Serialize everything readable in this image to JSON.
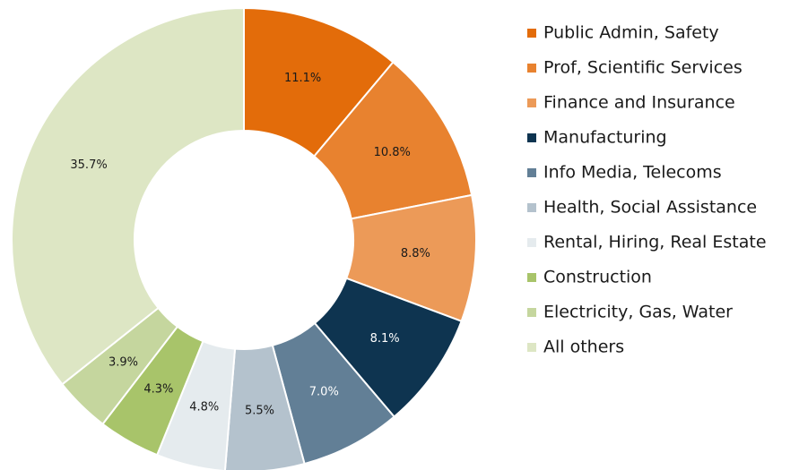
{
  "chart_data": {
    "type": "donut",
    "categories": [
      "Public Admin, Safety",
      "Prof, Scientific Services",
      "Finance and Insurance",
      "Manufacturing",
      "Info Media, Telecoms",
      "Health, Social Assistance",
      "Rental, Hiring, Real Estate",
      "Construction",
      "Electricity, Gas, Water",
      "All others"
    ],
    "values": [
      11.1,
      10.8,
      8.8,
      8.1,
      7.0,
      5.5,
      4.8,
      4.3,
      3.9,
      35.7
    ],
    "value_labels": [
      "11.1%",
      "10.8%",
      "8.8%",
      "8.1%",
      "7.0%",
      "5.5%",
      "4.8%",
      "4.3%",
      "3.9%",
      "35.7%"
    ],
    "colors": [
      "#e36c0a",
      "#e8822f",
      "#ec9a58",
      "#0e3450",
      "#627f96",
      "#b4c2cd",
      "#e5ebee",
      "#a8c46a",
      "#c5d69e",
      "#dde6c4"
    ],
    "legend": "right"
  }
}
